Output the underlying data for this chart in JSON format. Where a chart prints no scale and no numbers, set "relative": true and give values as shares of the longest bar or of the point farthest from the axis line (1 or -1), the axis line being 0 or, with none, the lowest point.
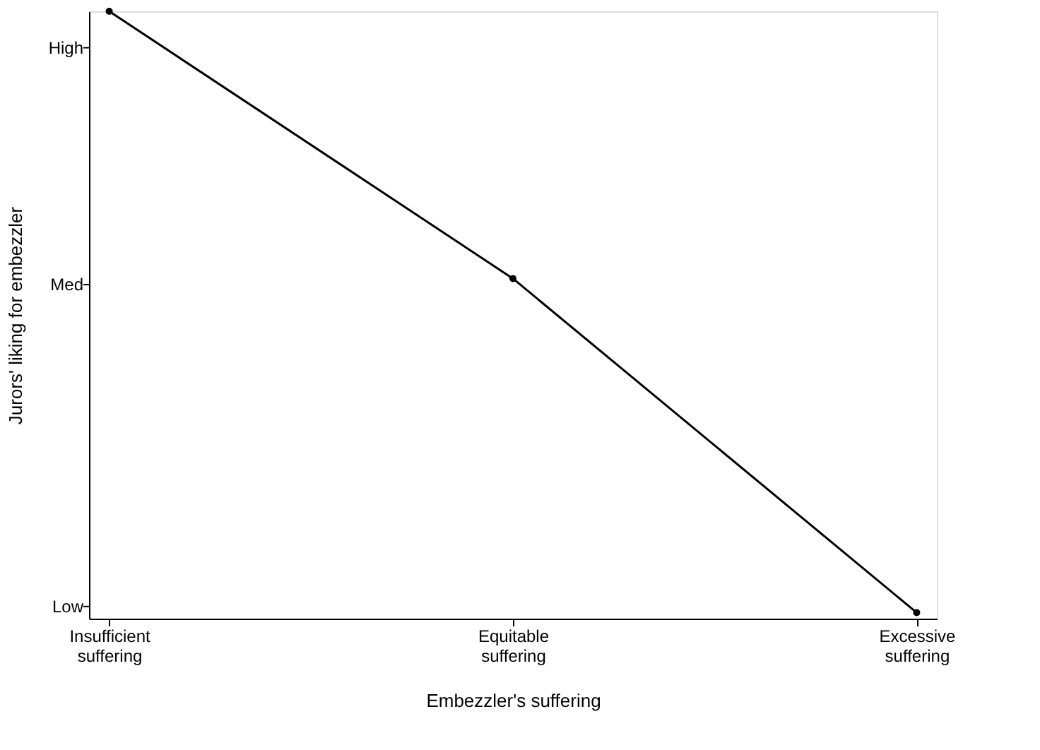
{
  "chart_data": {
    "type": "line",
    "xlabel": "Embezzler's suffering",
    "ylabel": "Jurors' liking for embezzler",
    "categories": [
      "Insufficient suffering",
      "Equitable suffering",
      "Excessive suffering"
    ],
    "series": [
      {
        "color": "#000000",
        "values": [
          1,
          0.56,
          0.01
        ]
      }
    ],
    "relative": true,
    "annotations": [
      "High",
      "Med",
      "Low"
    ],
    "grid": false,
    "marker": "circle",
    "line_style": "solid"
  }
}
